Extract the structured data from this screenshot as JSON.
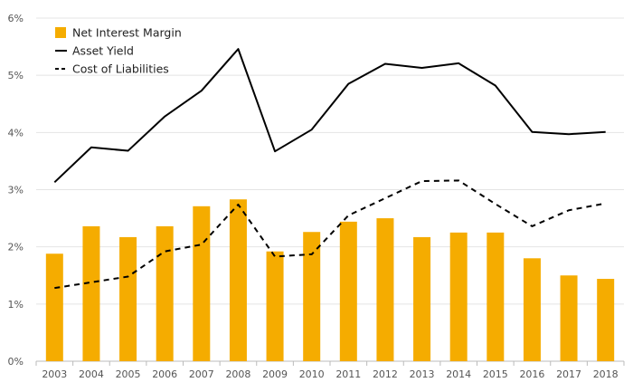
{
  "chart_data": {
    "type": "bar",
    "categories": [
      "2003",
      "2004",
      "2005",
      "2006",
      "2007",
      "2008",
      "2009",
      "2010",
      "2011",
      "2012",
      "2013",
      "2014",
      "2015",
      "2016",
      "2017",
      "2018"
    ],
    "ylim": [
      0,
      6
    ],
    "yticks": [
      0,
      1,
      2,
      3,
      4,
      5,
      6
    ],
    "ytick_labels": [
      "0%",
      "1%",
      "2%",
      "3%",
      "4%",
      "5%",
      "6%"
    ],
    "grid": true,
    "legend_position": "top-left",
    "series": [
      {
        "name": "Net Interest Margin",
        "type": "bar",
        "color": "#f5ac00",
        "values": [
          1.88,
          2.36,
          2.17,
          2.36,
          2.71,
          2.83,
          1.92,
          2.26,
          2.44,
          2.5,
          2.17,
          2.25,
          2.25,
          1.8,
          1.5,
          1.44
        ]
      },
      {
        "name": "Asset Yield",
        "type": "line",
        "style": "solid",
        "color": "#000000",
        "values": [
          3.13,
          3.74,
          3.68,
          4.28,
          4.73,
          5.46,
          3.67,
          4.05,
          4.85,
          5.2,
          5.13,
          5.21,
          4.82,
          4.01,
          3.97,
          4.01
        ]
      },
      {
        "name": "Cost of Liabilities",
        "type": "line",
        "style": "dashed",
        "color": "#000000",
        "values": [
          1.28,
          1.38,
          1.48,
          1.92,
          2.04,
          2.74,
          1.83,
          1.87,
          2.55,
          2.85,
          3.15,
          3.16,
          2.75,
          2.36,
          2.64,
          2.76
        ]
      }
    ]
  }
}
